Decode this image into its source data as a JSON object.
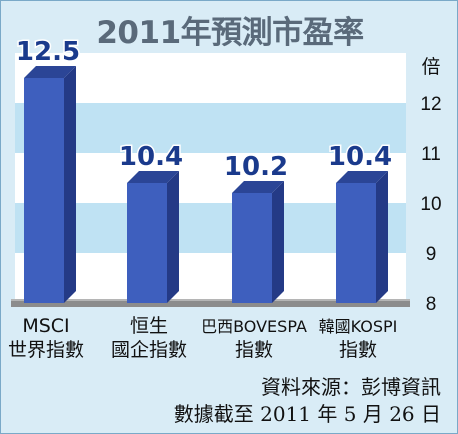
{
  "chart_data": {
    "type": "bar",
    "title": "2011年預測市盈率",
    "ylabel": "倍",
    "ylim": [
      8,
      13
    ],
    "yticks": [
      "8",
      "9",
      "10",
      "11",
      "12"
    ],
    "categories": [
      [
        "MSCI",
        "世界指數"
      ],
      [
        "恒生",
        "國企指數"
      ],
      [
        "巴西BOVESPA",
        "指數"
      ],
      [
        "韓國KOSPI",
        "指數"
      ]
    ],
    "values": [
      12.5,
      10.4,
      10.2,
      10.4
    ],
    "value_labels": [
      "12.5",
      "10.4",
      "10.2",
      "10.4"
    ],
    "grid": true,
    "colors": {
      "bar_front": "#3e5fbe",
      "bar_side": "#243a86",
      "bar_top": "#2b4596",
      "value_label": "#1a3a8c",
      "band": "#bfe2f3"
    }
  },
  "footer": {
    "source_line": "資料來源：彭博資訊",
    "date_line": "數據截至 2011 年 5 月 26 日"
  }
}
